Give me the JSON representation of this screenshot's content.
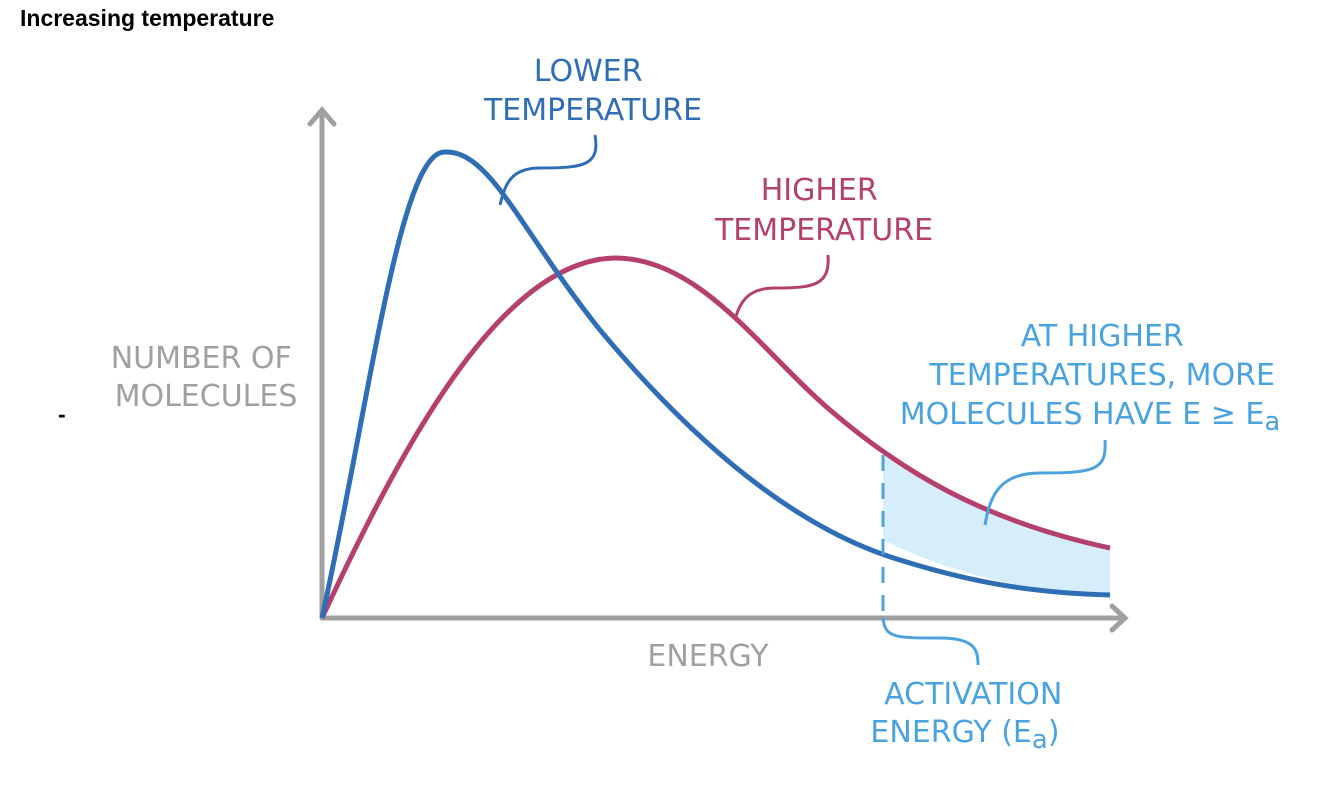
{
  "heading": "Increasing temperature",
  "bullet": "-",
  "lower_label": {
    "lines": [
      "LOWER",
      "TEMPERATURE"
    ]
  },
  "higher_label": {
    "lines": [
      "HIGHER",
      "TEMPERATURE"
    ]
  },
  "y_axis_label": {
    "lines": [
      "NUMBER OF",
      "MOLECULES"
    ]
  },
  "x_axis_label": "ENERGY",
  "annotation": {
    "lines": [
      "AT HIGHER",
      "TEMPERATURES, MORE",
      "MOLECULES HAVE E ≥ E"
    ],
    "subscript": "a"
  },
  "activation_label": {
    "lines": [
      "ACTIVATION",
      "ENERGY (E"
    ],
    "subscript": "a",
    "suffix": ")"
  }
}
